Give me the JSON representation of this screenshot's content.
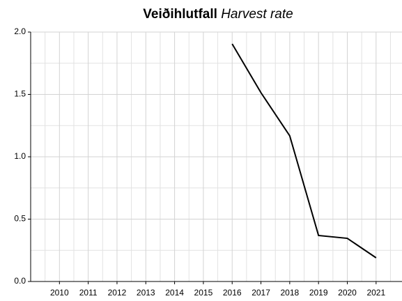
{
  "chart_data": {
    "type": "line",
    "title": "Veiðihlutfall",
    "title_translation": "Harvest rate",
    "x": [
      2010,
      2011,
      2012,
      2013,
      2014,
      2015,
      2016,
      2017,
      2018,
      2019,
      2020,
      2021
    ],
    "series": [
      {
        "color": "#000000",
        "values": [
          null,
          null,
          null,
          null,
          null,
          null,
          1.905,
          1.514,
          1.168,
          0.369,
          0.346,
          0.19
        ]
      }
    ],
    "xlim": [
      2009,
      2021.9
    ],
    "xticks": [
      2010,
      2011,
      2012,
      2013,
      2014,
      2015,
      2016,
      2017,
      2018,
      2019,
      2020,
      2021
    ],
    "ylim": [
      0,
      2
    ],
    "yticks": [
      {
        "value": 0,
        "label": "0.0"
      },
      0.5,
      {
        "value": 1,
        "label": "1.0"
      },
      1.5,
      {
        "value": 2,
        "label": "2.0"
      }
    ],
    "grid": true,
    "minor_grid": true
  }
}
